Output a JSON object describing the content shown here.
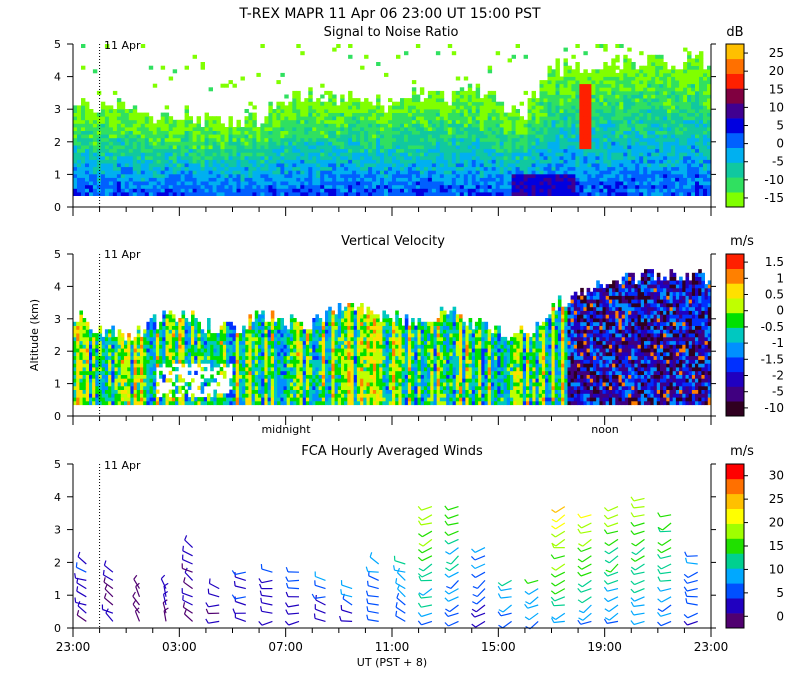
{
  "figure": {
    "title": "T-REX  MAPR 11 Apr 06  23:00 UT  15:00  PST",
    "date_marker": "11 Apr",
    "xlabel": "UT  (PST + 8)",
    "ylabel": "Altitude (km)",
    "x_tick_labels": [
      "23:00",
      "03:00",
      "07:00",
      "11:00",
      "15:00",
      "19:00",
      "23:00"
    ],
    "midnight_label": "midnight",
    "noon_label": "noon"
  },
  "colors": {
    "snr_palette": [
      "#80ff00",
      "#30e060",
      "#10c8a0",
      "#00b0f0",
      "#0060ff",
      "#0000e0",
      "#400090",
      "#800040",
      "#ff2000",
      "#ff7000",
      "#ffc000"
    ],
    "vel_palette": [
      "#300020",
      "#400080",
      "#2000c0",
      "#0030ff",
      "#0090ff",
      "#00c8c0",
      "#00e000",
      "#c0ff00",
      "#ffe000",
      "#ff8000",
      "#ff2000"
    ],
    "wind_palette": [
      "#500070",
      "#2000c0",
      "#0050ff",
      "#00a8ff",
      "#00d090",
      "#20e000",
      "#a0ff00",
      "#ffff00",
      "#ffc000",
      "#ff7000",
      "#ff0000"
    ]
  },
  "chart_data": [
    {
      "type": "heatmap",
      "title": "Signal to Noise Ratio",
      "x_time_range_ut": [
        "23:00",
        "23:00 next day"
      ],
      "x_range_hours": [
        0,
        24
      ],
      "ylim": [
        0,
        5
      ],
      "y_ticks": [
        0,
        1,
        2,
        3,
        4,
        5
      ],
      "colorbar": {
        "unit": "dB",
        "ticks": [
          -15,
          -10,
          -5,
          0,
          5,
          10,
          15,
          20,
          25
        ],
        "range": [
          -17,
          29
        ]
      },
      "features": {
        "echo_base_km": 0.35,
        "top_km_by_hour": [
          3.2,
          2.8,
          3.0,
          2.6,
          2.8,
          2.4,
          2.5,
          2.6,
          3.1,
          3.3,
          3.2,
          3.1,
          3.0,
          3.4,
          3.2,
          3.6,
          3.0,
          2.8,
          4.2,
          4.0,
          4.2,
          4.3,
          4.4,
          4.3,
          4.2
        ],
        "strong_echo": {
          "hours": [
            16.5,
            18.8
          ],
          "alt_km": [
            0.4,
            1.0
          ],
          "db": 8
        },
        "bright_streak": {
          "hour": 19.2,
          "alt_km": [
            1.8,
            3.8
          ],
          "db": 18
        }
      }
    },
    {
      "type": "heatmap",
      "title": "Vertical Velocity",
      "x_range_hours": [
        0,
        24
      ],
      "ylim": [
        0,
        5
      ],
      "y_ticks": [
        0,
        1,
        2,
        3,
        4,
        5
      ],
      "colorbar": {
        "unit": "m/s",
        "ticks": [
          -10,
          -5,
          -2,
          -1.5,
          -1,
          -0.5,
          0,
          0.5,
          1,
          1.5
        ]
      },
      "features": {
        "top_km_by_hour": [
          3.1,
          2.7,
          2.4,
          2.9,
          3.1,
          2.8,
          2.7,
          3.2,
          2.9,
          2.8,
          3.4,
          3.2,
          3.0,
          3.0,
          3.2,
          2.8,
          2.6,
          2.6,
          3.4,
          3.8,
          4.2,
          4.3,
          4.4,
          4.3,
          4.2
        ],
        "downdraft_region": {
          "hours": [
            18.6,
            24
          ],
          "alt_km": [
            0.3,
            4.4
          ],
          "m_s": -1.5
        }
      }
    },
    {
      "type": "scatter",
      "title": "FCA Hourly Averaged Winds",
      "x_range_hours": [
        0,
        24
      ],
      "ylim": [
        0,
        5
      ],
      "y_ticks": [
        0,
        1,
        2,
        3,
        4,
        5
      ],
      "colorbar": {
        "unit": "m/s",
        "ticks": [
          0,
          5,
          10,
          15,
          20,
          25,
          30
        ]
      },
      "barb_columns_hours": [
        0.5,
        1.5,
        2.5,
        3.5,
        4.5,
        5.5,
        6.5,
        7.5,
        8.5,
        9.5,
        10.5,
        11.5,
        12.5,
        13.5,
        14.5,
        15.5,
        16.5,
        17.5,
        18.5,
        19.5,
        20.5,
        21.5,
        22.5,
        23.5
      ],
      "barb_top_km": [
        2.0,
        1.7,
        1.2,
        1.3,
        2.6,
        1.2,
        1.8,
        1.8,
        1.8,
        1.6,
        1.2,
        2.1,
        2.0,
        3.9,
        3.9,
        2.6,
        1.6,
        1.6,
        3.8,
        3.6,
        3.9,
        4.0,
        3.6,
        2.4
      ],
      "wind_speed_m_s": [
        6,
        5,
        4,
        5,
        4,
        6,
        8,
        7,
        7,
        9,
        10,
        11,
        12,
        22,
        16,
        10,
        14,
        15,
        25,
        22,
        20,
        20,
        18,
        10
      ],
      "wind_direction_deg": [
        300,
        310,
        320,
        330,
        300,
        280,
        270,
        270,
        270,
        280,
        290,
        290,
        300,
        250,
        240,
        230,
        250,
        240,
        250,
        240,
        240,
        245,
        250,
        260
      ]
    }
  ]
}
